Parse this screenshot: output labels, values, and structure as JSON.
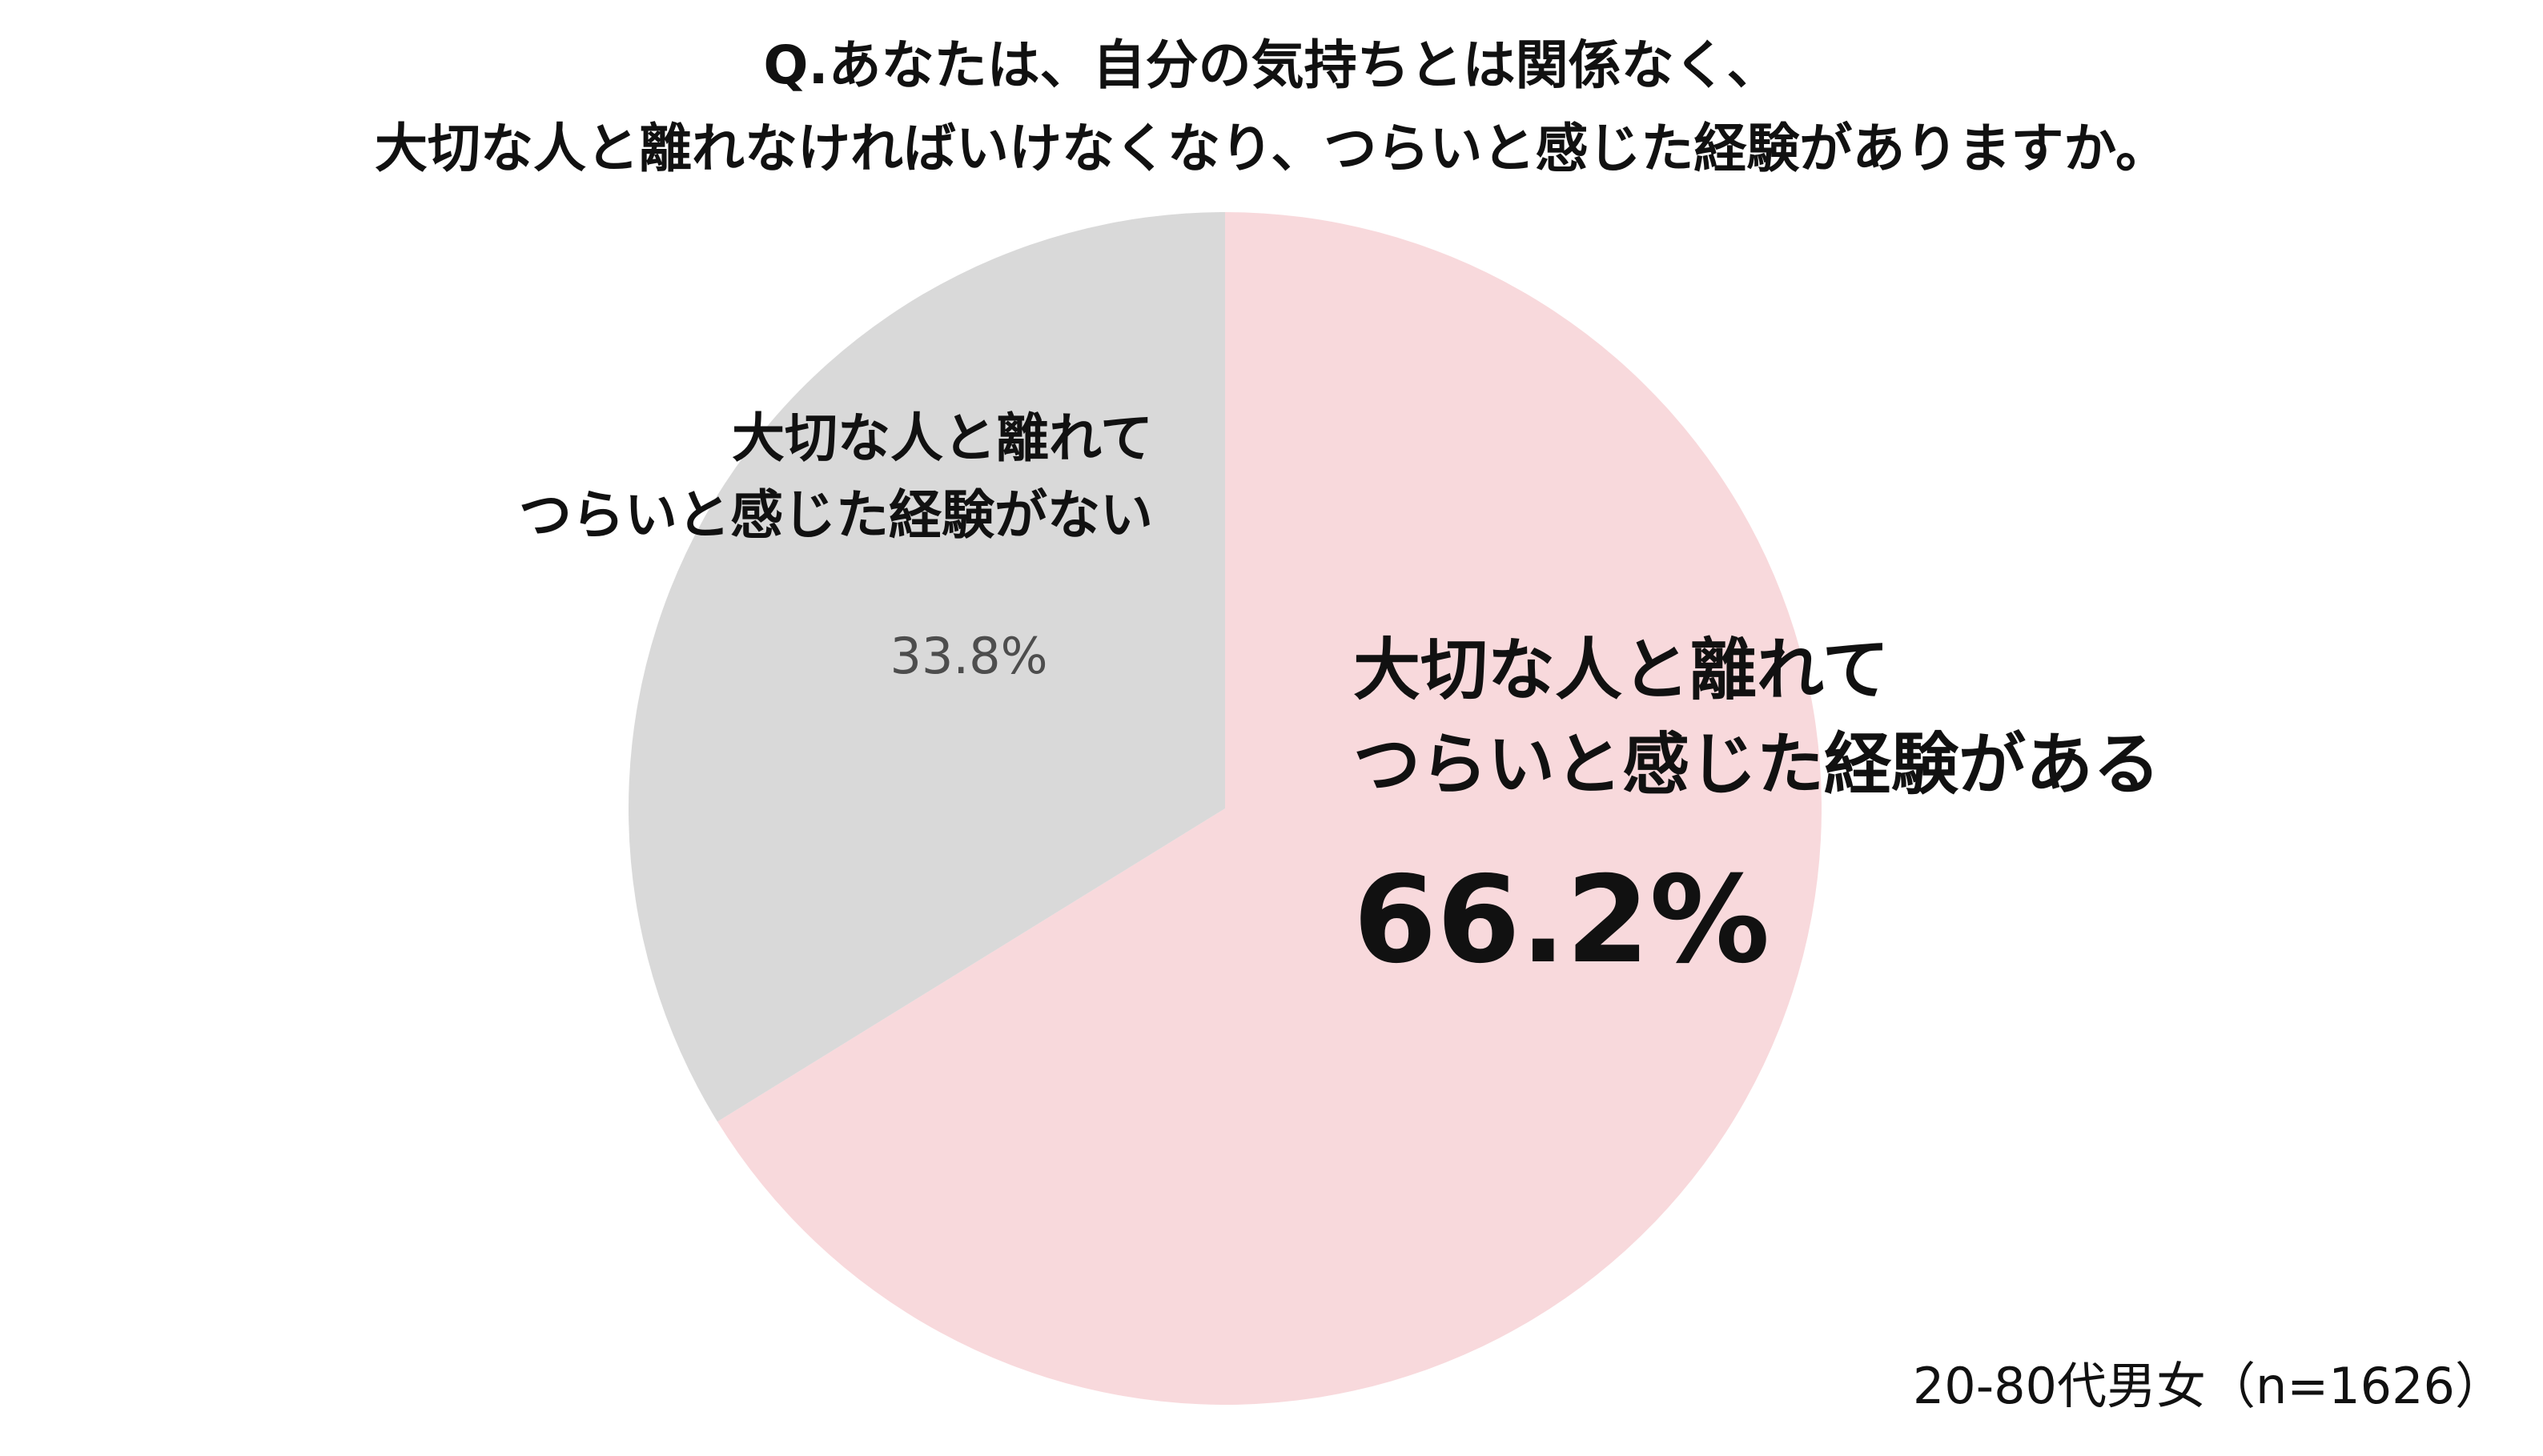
{
  "chart_data": {
    "type": "pie",
    "title_lines": [
      "Q.あなたは、自分の気持ちとは関係なく、",
      "大切な人と離れなければいけなくなり、つらいと感じた経験がありますか。"
    ],
    "slices": [
      {
        "label_lines": [
          "大切な人と離れて",
          "つらいと感じた経験がある"
        ],
        "value": 66.2,
        "value_label": "66.2%",
        "color": "#f8d9dc"
      },
      {
        "label_lines": [
          "大切な人と離れて",
          "つらいと感じた経験がない"
        ],
        "value": 33.8,
        "value_label": "33.8%",
        "color": "#d9d9d9"
      }
    ],
    "note": "20-80代男女（n=1626）"
  }
}
